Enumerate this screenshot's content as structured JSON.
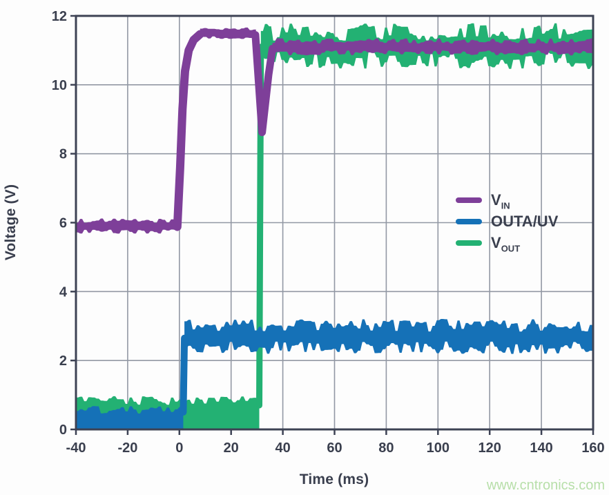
{
  "watermark": {
    "text": "www.cntronics.com",
    "color": "#b7dfa9"
  },
  "colors": {
    "background": "#fdfdfd",
    "text": "#3a3f4e",
    "axis_frame": "#3d4254",
    "gridlines": "#9298a4",
    "vin_purple": "#7e3f99",
    "outa_blue": "#1571b7",
    "vout_green": "#23b173"
  },
  "chart_data": {
    "type": "line",
    "title": "",
    "xlabel": "Time (ms)",
    "ylabel": "Voltage (V)",
    "xlim": [
      -40,
      160
    ],
    "ylim": [
      0,
      12
    ],
    "xticks": [
      -40,
      -20,
      0,
      20,
      40,
      60,
      80,
      100,
      120,
      140,
      160
    ],
    "yticks": [
      0,
      2,
      4,
      6,
      8,
      10,
      12
    ],
    "grid": true,
    "legend_position": "middle-right",
    "series": [
      {
        "name": "VIN",
        "legend_main": "V",
        "legend_sub": "IN",
        "color": "#7e3f99",
        "description": "Input supply: ~5.9 V noisy until t=0, ramps to ~11.5 V by t=8 ms, brief dip to ~8.6 V at t~32 ms, then settles ~11.1 V noisy to 160 ms",
        "bands": [
          {
            "from": -40,
            "to": -0.5,
            "level": 5.9,
            "noise": 0.15,
            "floor": false
          },
          {
            "from": 8,
            "to": 29.6,
            "level": 11.5,
            "noise": 0.1,
            "floor": false
          },
          {
            "from": 36,
            "to": 160,
            "level": 11.1,
            "noise": 0.18,
            "floor": false
          }
        ],
        "lines": [
          {
            "points": [
              [
                -0.8,
                5.88
              ],
              [
                0.3,
                7.6
              ],
              [
                1.2,
                9.3
              ],
              [
                2.2,
                10.4
              ],
              [
                3.6,
                11.0
              ],
              [
                5.5,
                11.3
              ],
              [
                8,
                11.47
              ]
            ],
            "width": 12
          },
          {
            "points": [
              [
                29.4,
                11.45
              ],
              [
                32,
                8.62
              ],
              [
                34.5,
                10.3
              ],
              [
                36,
                11.05
              ]
            ],
            "width": 11
          }
        ]
      },
      {
        "name": "OUTA/UV",
        "legend_main": "OUTA/UV",
        "legend_sub": "",
        "color": "#1571b7",
        "description": "Undervoltage comparator output: ~0.35 V until t~1.5 ms, steps up to ~2.7 V noisy band through 160 ms",
        "bands": [
          {
            "from": -40,
            "to": 1.5,
            "level": 0.35,
            "noise": 0.26,
            "floor": true
          },
          {
            "from": 1.95,
            "to": 160,
            "level": 2.7,
            "noise": 0.44,
            "floor": false
          }
        ],
        "lines": [
          {
            "points": [
              [
                1.5,
                0.5
              ],
              [
                1.95,
                2.65
              ]
            ],
            "width": 10
          }
        ]
      },
      {
        "name": "VOUT",
        "legend_main": "V",
        "legend_sub": "OUT",
        "color": "#23b173",
        "description": "Output voltage: ~0.6 V noisy until t~31 ms, vertical step to ~11.1 V, wide noisy band ~10.5-11.8 V through 160 ms",
        "bands": [
          {
            "from": -40,
            "to": 30.9,
            "level": 0.6,
            "noise": 0.3,
            "floor": true
          },
          {
            "from": 31.5,
            "to": 160,
            "level": 11.12,
            "noise": 0.6,
            "floor": false
          }
        ],
        "lines": [
          {
            "points": [
              [
                30.9,
                0.7
              ],
              [
                31.5,
                11.1
              ]
            ],
            "width": 9
          }
        ]
      }
    ]
  }
}
